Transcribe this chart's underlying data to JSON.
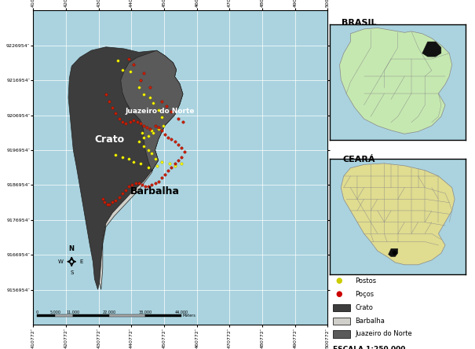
{
  "background_color": "#aad3df",
  "map_xlim": [
    410772,
    500772
  ],
  "map_ylim": [
    9146954,
    9236954
  ],
  "xticks": [
    410772,
    420772,
    430772,
    440772,
    450772,
    460772,
    470772,
    480772,
    490772,
    500772
  ],
  "yticks": [
    9156954,
    9166954,
    9176954,
    9186954,
    9196954,
    9206954,
    9216954,
    9226954
  ],
  "crato_color": "#3d3d3d",
  "barbalha_color": "#d0cfc9",
  "juazeiro_color": "#5a5a5a",
  "crato_pts": [
    [
      428500,
      9225500
    ],
    [
      433000,
      9226500
    ],
    [
      438500,
      9226000
    ],
    [
      443000,
      9225000
    ],
    [
      445000,
      9225200
    ],
    [
      448500,
      9225500
    ],
    [
      451000,
      9224000
    ],
    [
      453500,
      9222000
    ],
    [
      454500,
      9220000
    ],
    [
      454000,
      9218000
    ],
    [
      455500,
      9216000
    ],
    [
      456500,
      9213000
    ],
    [
      455500,
      9210000
    ],
    [
      454000,
      9207000
    ],
    [
      451000,
      9204000
    ],
    [
      449000,
      9200000
    ],
    [
      448000,
      9197000
    ],
    [
      449000,
      9194000
    ],
    [
      447000,
      9191000
    ],
    [
      444500,
      9188000
    ],
    [
      441000,
      9185000
    ],
    [
      438000,
      9182000
    ],
    [
      435000,
      9179000
    ],
    [
      433000,
      9176000
    ],
    [
      432000,
      9171000
    ],
    [
      431500,
      9165000
    ],
    [
      431000,
      9159000
    ],
    [
      430500,
      9157000
    ],
    [
      429500,
      9160000
    ],
    [
      429000,
      9165000
    ],
    [
      428000,
      9170000
    ],
    [
      427000,
      9175500
    ],
    [
      426000,
      9181000
    ],
    [
      425000,
      9186500
    ],
    [
      424000,
      9192000
    ],
    [
      423000,
      9197000
    ],
    [
      422500,
      9202000
    ],
    [
      422000,
      9207000
    ],
    [
      421500,
      9212000
    ],
    [
      421800,
      9217500
    ],
    [
      422500,
      9221000
    ],
    [
      425000,
      9223500
    ],
    [
      428500,
      9225500
    ]
  ],
  "barbalha_pts": [
    [
      431000,
      9159000
    ],
    [
      431500,
      9165000
    ],
    [
      432000,
      9171000
    ],
    [
      433000,
      9176000
    ],
    [
      435000,
      9179000
    ],
    [
      438000,
      9182000
    ],
    [
      441000,
      9185000
    ],
    [
      444500,
      9188000
    ],
    [
      447000,
      9191000
    ],
    [
      449000,
      9194000
    ],
    [
      448000,
      9197000
    ],
    [
      449000,
      9200000
    ],
    [
      451000,
      9204000
    ],
    [
      454000,
      9207000
    ],
    [
      455500,
      9210000
    ],
    [
      456500,
      9213000
    ],
    [
      455500,
      9216000
    ],
    [
      454000,
      9218000
    ],
    [
      454500,
      9220000
    ],
    [
      453500,
      9222000
    ],
    [
      452000,
      9220500
    ],
    [
      450500,
      9218000
    ],
    [
      449500,
      9215500
    ],
    [
      449000,
      9212500
    ],
    [
      449500,
      9209500
    ],
    [
      449500,
      9206000
    ],
    [
      449000,
      9202500
    ],
    [
      448000,
      9199500
    ],
    [
      447500,
      9196500
    ],
    [
      448000,
      9193500
    ],
    [
      447000,
      9190500
    ],
    [
      445000,
      9188000
    ],
    [
      443000,
      9185500
    ],
    [
      440500,
      9183000
    ],
    [
      438000,
      9180500
    ],
    [
      435500,
      9178000
    ],
    [
      433000,
      9175000
    ],
    [
      432000,
      9170000
    ],
    [
      432000,
      9163000
    ],
    [
      431500,
      9157000
    ],
    [
      431000,
      9159000
    ]
  ],
  "juazeiro_pts": [
    [
      448500,
      9225500
    ],
    [
      451000,
      9224000
    ],
    [
      453500,
      9222000
    ],
    [
      454500,
      9220000
    ],
    [
      454000,
      9218000
    ],
    [
      455500,
      9216000
    ],
    [
      456500,
      9213000
    ],
    [
      455500,
      9210000
    ],
    [
      454000,
      9207000
    ],
    [
      451000,
      9204000
    ],
    [
      449000,
      9200000
    ],
    [
      448000,
      9197000
    ],
    [
      449000,
      9194000
    ],
    [
      447000,
      9191000
    ],
    [
      446000,
      9193500
    ],
    [
      445000,
      9197000
    ],
    [
      444500,
      9200000
    ],
    [
      444500,
      9202500
    ],
    [
      443500,
      9205500
    ],
    [
      442000,
      9207000
    ],
    [
      440500,
      9208500
    ],
    [
      439000,
      9211000
    ],
    [
      438000,
      9213500
    ],
    [
      437500,
      9217000
    ],
    [
      438500,
      9219500
    ],
    [
      440000,
      9222000
    ],
    [
      442500,
      9223500
    ],
    [
      445500,
      9224500
    ],
    [
      448500,
      9225500
    ]
  ],
  "postos_xy": [
    [
      436500,
      9222500
    ],
    [
      438000,
      9220000
    ],
    [
      440500,
      9219500
    ],
    [
      443000,
      9215000
    ],
    [
      444500,
      9213000
    ],
    [
      446500,
      9212000
    ],
    [
      447500,
      9210500
    ],
    [
      449000,
      9208500
    ],
    [
      450000,
      9206500
    ],
    [
      450500,
      9204000
    ],
    [
      449000,
      9203000
    ],
    [
      447500,
      9202000
    ],
    [
      446000,
      9201000
    ],
    [
      444500,
      9200500
    ],
    [
      443000,
      9199500
    ],
    [
      444500,
      9198000
    ],
    [
      446000,
      9197000
    ],
    [
      447000,
      9196000
    ],
    [
      448000,
      9194500
    ],
    [
      447000,
      9202500
    ],
    [
      448500,
      9192500
    ],
    [
      446000,
      9192000
    ],
    [
      444000,
      9202000
    ],
    [
      443500,
      9193000
    ],
    [
      441500,
      9193500
    ],
    [
      440000,
      9194500
    ],
    [
      438000,
      9195000
    ],
    [
      436000,
      9195500
    ],
    [
      450000,
      9193500
    ],
    [
      452500,
      9193000
    ],
    [
      454000,
      9192500
    ],
    [
      456000,
      9193000
    ]
  ],
  "pocos_xy": [
    [
      433000,
      9213000
    ],
    [
      434000,
      9211000
    ],
    [
      435000,
      9209000
    ],
    [
      436000,
      9207500
    ],
    [
      437000,
      9206000
    ],
    [
      438000,
      9205000
    ],
    [
      439000,
      9204500
    ],
    [
      440500,
      9205000
    ],
    [
      441500,
      9205500
    ],
    [
      442500,
      9205000
    ],
    [
      443500,
      9204500
    ],
    [
      444500,
      9204000
    ],
    [
      445500,
      9203500
    ],
    [
      446500,
      9203000
    ],
    [
      448000,
      9204000
    ],
    [
      449000,
      9203500
    ],
    [
      450000,
      9202500
    ],
    [
      451000,
      9201500
    ],
    [
      452000,
      9200500
    ],
    [
      453000,
      9200000
    ],
    [
      454000,
      9199500
    ],
    [
      455000,
      9198500
    ],
    [
      456000,
      9197500
    ],
    [
      457000,
      9196500
    ],
    [
      456000,
      9195000
    ],
    [
      455000,
      9194000
    ],
    [
      454000,
      9193000
    ],
    [
      453000,
      9192000
    ],
    [
      452000,
      9191000
    ],
    [
      451000,
      9190000
    ],
    [
      450000,
      9189000
    ],
    [
      449000,
      9188000
    ],
    [
      448000,
      9187500
    ],
    [
      447000,
      9187000
    ],
    [
      446000,
      9186500
    ],
    [
      445000,
      9186500
    ],
    [
      444000,
      9187000
    ],
    [
      443000,
      9187500
    ],
    [
      442000,
      9187500
    ],
    [
      441000,
      9187000
    ],
    [
      440000,
      9186500
    ],
    [
      439000,
      9185500
    ],
    [
      438000,
      9184500
    ],
    [
      437000,
      9183500
    ],
    [
      436000,
      9182500
    ],
    [
      435000,
      9182000
    ],
    [
      434000,
      9181500
    ],
    [
      433500,
      9181500
    ],
    [
      432500,
      9182000
    ],
    [
      432000,
      9183000
    ],
    [
      440000,
      9223000
    ],
    [
      441500,
      9221500
    ],
    [
      443500,
      9217000
    ],
    [
      444500,
      9219000
    ],
    [
      446500,
      9215000
    ],
    [
      450000,
      9211000
    ],
    [
      451500,
      9209500
    ],
    [
      453000,
      9208000
    ],
    [
      455000,
      9206000
    ],
    [
      456500,
      9205000
    ]
  ],
  "brasil_label": "BRASIL",
  "ceara_label": "CEARÁ",
  "scale_label": "ESCALA 1:250.000",
  "legend_items": [
    {
      "label": "Postos",
      "color": "#cccc00",
      "marker": "o"
    },
    {
      "label": "Poços",
      "color": "#cc0000",
      "marker": "o"
    },
    {
      "label": "Crato",
      "color": "#3d3d3d",
      "marker": "s"
    },
    {
      "label": "Barbalha",
      "color": "#d0cfc9",
      "marker": "s"
    },
    {
      "label": "Juazeiro do Norte",
      "color": "#5a5a5a",
      "marker": "s"
    }
  ]
}
